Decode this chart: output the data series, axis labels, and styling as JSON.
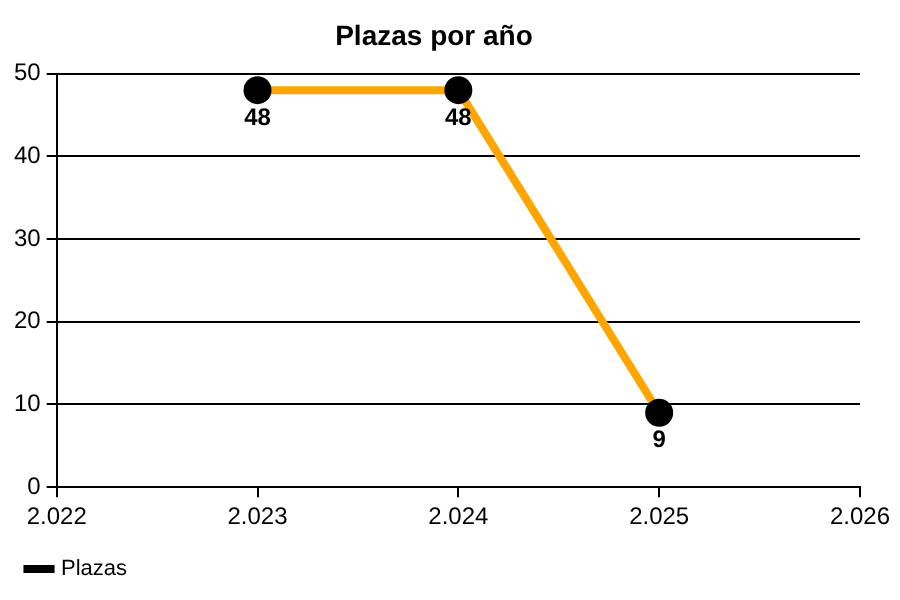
{
  "chart_data": {
    "type": "line",
    "title": "Plazas por año",
    "x": [
      2023,
      2024,
      2025
    ],
    "series": [
      {
        "name": "Plazas",
        "color": "#ffa500",
        "values": [
          48,
          48,
          9
        ]
      }
    ],
    "xlim": [
      2022,
      2026
    ],
    "xticks": [
      {
        "value": 2022,
        "label": "2.022"
      },
      {
        "value": 2023,
        "label": "2.023"
      },
      {
        "value": 2024,
        "label": "2.024"
      },
      {
        "value": 2025,
        "label": "2.025"
      },
      {
        "value": 2026,
        "label": "2.026"
      }
    ],
    "ylim": [
      0,
      50
    ],
    "yticks": [
      0,
      10,
      20,
      30,
      40,
      50
    ],
    "grid": "y",
    "legend": "bottom left",
    "marker": "circle",
    "line_style": "solid",
    "data_labels": true
  }
}
